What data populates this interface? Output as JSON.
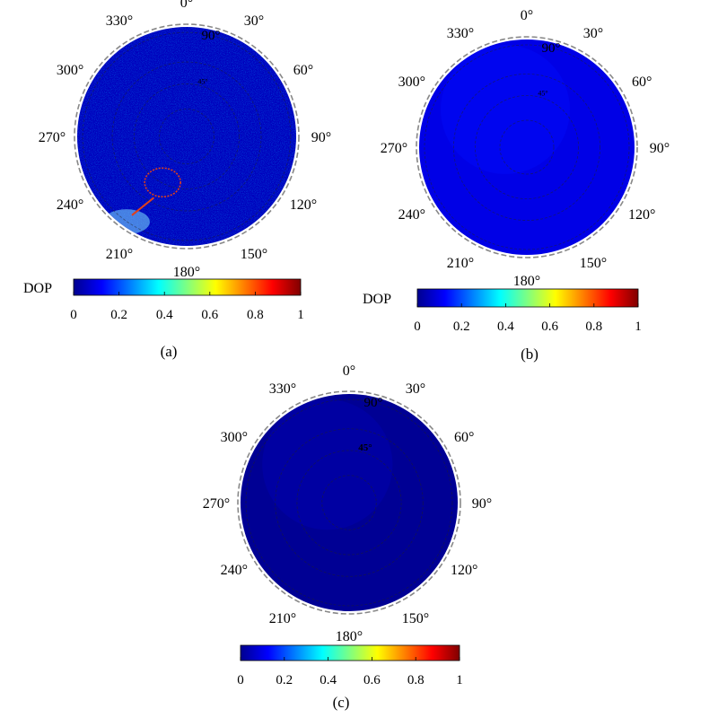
{
  "chart_data": [
    {
      "panel_label": "(a)",
      "type": "heatmap",
      "projection": "polar",
      "azimuth_ticks": [
        "0°",
        "30°",
        "60°",
        "90°",
        "120°",
        "150°",
        "180°",
        "210°",
        "240°",
        "270°",
        "300°",
        "330°"
      ],
      "zenith_labels": [
        "90°",
        "45°"
      ],
      "colorbar": {
        "label": "DOP",
        "range": [
          0,
          1
        ],
        "ticks": [
          "0",
          "0.2",
          "0.4",
          "0.6",
          "0.8",
          "1"
        ],
        "colormap": "jet"
      },
      "field_dop": 0.06,
      "noise": true,
      "highlight": {
        "shape": "ellipse-with-leader",
        "color": "#e0401a"
      }
    },
    {
      "panel_label": "(b)",
      "type": "heatmap",
      "projection": "polar",
      "azimuth_ticks": [
        "0°",
        "30°",
        "60°",
        "90°",
        "120°",
        "150°",
        "180°",
        "210°",
        "240°",
        "270°",
        "300°",
        "330°"
      ],
      "zenith_labels": [
        "90°",
        "45°"
      ],
      "colorbar": {
        "label": "DOP",
        "range": [
          0,
          1
        ],
        "ticks": [
          "0",
          "0.2",
          "0.4",
          "0.6",
          "0.8",
          "1"
        ],
        "colormap": "jet"
      },
      "field_dop": 0.1,
      "noise": false
    },
    {
      "panel_label": "(c)",
      "type": "heatmap",
      "projection": "polar",
      "azimuth_ticks": [
        "0°",
        "30°",
        "60°",
        "90°",
        "120°",
        "150°",
        "180°",
        "210°",
        "240°",
        "270°",
        "300°",
        "330°"
      ],
      "zenith_labels": [
        "90°",
        "45°"
      ],
      "colorbar": {
        "label": "",
        "range": [
          0,
          1
        ],
        "ticks": [
          "0",
          "0.2",
          "0.4",
          "0.6",
          "0.8",
          "1"
        ],
        "colormap": "jet"
      },
      "field_dop": 0.02,
      "noise": false
    }
  ],
  "colors": {
    "grid": "#222222",
    "rim": "#888888",
    "highlight": "#e0401a"
  }
}
